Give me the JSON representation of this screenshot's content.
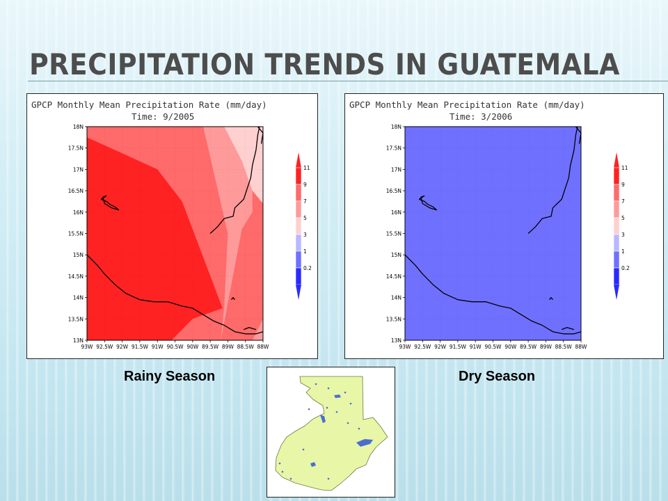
{
  "slide": {
    "title": "PRECIPITATION TRENDS IN GUATEMALA",
    "captions": {
      "left": "Rainy Season",
      "right": "Dry Season"
    }
  },
  "colors": {
    "level_0_1": "#2a2aff",
    "level_1_3": "#7070ff",
    "level_3_5": "#b8b8ff",
    "level_5_7": "#ffd0d0",
    "level_7_9": "#ff9a9a",
    "level_9_11": "#ff6a6a",
    "level_11_up": "#ff2222",
    "map_land": "#e8f6a8",
    "map_water": "#4a6ed0"
  },
  "chart_data": [
    {
      "type": "heatmap",
      "header": "GPCP Monthly Mean Precipitation Rate (mm/day)",
      "time": "Time: 9/2005",
      "season": "Rainy Season",
      "xlim": [
        -93,
        -88
      ],
      "ylim": [
        13,
        18
      ],
      "x_ticks": [
        "93W",
        "92.5W",
        "92W",
        "91.5W",
        "91W",
        "90.5W",
        "90W",
        "89.5W",
        "89W",
        "88.5W",
        "88W"
      ],
      "y_ticks": [
        "13N",
        "13.5N",
        "14N",
        "14.5N",
        "15N",
        "15.5N",
        "16N",
        "16.5N",
        "17N",
        "17.5N",
        "18N"
      ],
      "legend_levels": [
        "0.2",
        "1",
        "3",
        "5",
        "7",
        "9",
        "11"
      ],
      "background_level": "9-11",
      "regions": [
        {
          "level": "11+",
          "polygon": [
            [
              -93,
              17.75
            ],
            [
              -91,
              17
            ],
            [
              -90.3,
              16.25
            ],
            [
              -89.15,
              13.75
            ],
            [
              -90,
              13.5
            ],
            [
              -90.6,
              13
            ],
            [
              -93,
              13
            ]
          ]
        },
        {
          "level": "7-9",
          "polygon": [
            [
              -89.7,
              18
            ],
            [
              -88.3,
              18
            ],
            [
              -88.3,
              16
            ],
            [
              -88.6,
              15.6
            ],
            [
              -89.2,
              13
            ],
            [
              -89.1,
              13.8
            ],
            [
              -89,
              15.5
            ]
          ]
        },
        {
          "level": "5-7",
          "polygon": [
            [
              -89.1,
              18
            ],
            [
              -88,
              18
            ],
            [
              -88,
              16.2
            ],
            [
              -88.3,
              16.5
            ],
            [
              -88.6,
              17.2
            ]
          ]
        },
        {
          "level": "7-9",
          "polygon": [
            [
              -88,
              13.5
            ],
            [
              -88.3,
              13
            ],
            [
              -88,
              13
            ]
          ]
        }
      ]
    },
    {
      "type": "heatmap",
      "header": "GPCP Monthly Mean Precipitation Rate (mm/day)",
      "time": "Time: 3/2006",
      "season": "Dry Season",
      "xlim": [
        -93,
        -88
      ],
      "ylim": [
        13,
        18
      ],
      "x_ticks": [
        "93W",
        "92.5W",
        "92W",
        "91.5W",
        "91W",
        "90.5W",
        "90W",
        "89.5W",
        "89W",
        "88.5W",
        "88W"
      ],
      "y_ticks": [
        "13N",
        "13.5N",
        "14N",
        "14.5N",
        "15N",
        "15.5N",
        "16N",
        "16.5N",
        "17N",
        "17.5N",
        "18N"
      ],
      "legend_levels": [
        "0.2",
        "1",
        "3",
        "5",
        "7",
        "9",
        "11"
      ],
      "background_level": "1-3",
      "regions": []
    }
  ]
}
